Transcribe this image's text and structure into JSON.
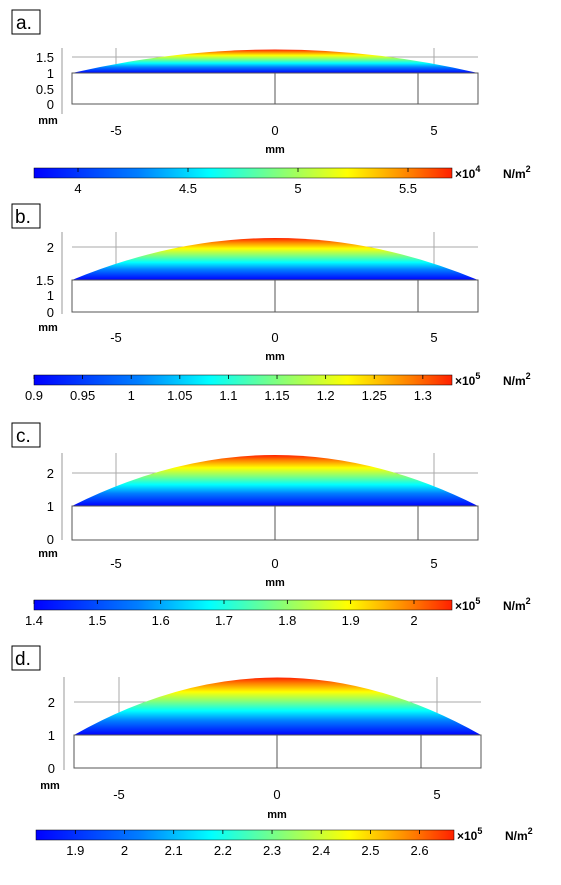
{
  "panels": [
    {
      "label": "a.",
      "y_ticks": [
        "0",
        "0.5",
        "1",
        "1.5"
      ],
      "y_unit": "mm",
      "x_ticks": [
        "-5",
        "0",
        "5"
      ],
      "x_unit": "mm",
      "colorbar_ticks": [
        "4",
        "4.5",
        "5",
        "5.5"
      ],
      "colorbar_min": 3.8,
      "colorbar_max": 5.7,
      "colorbar_multiplier": "×10",
      "colorbar_exponent": "4",
      "colorbar_unit": "N/m",
      "colorbar_unit_exponent": "2"
    },
    {
      "label": "b.",
      "y_ticks": [
        "0",
        "1",
        "1.5",
        "2"
      ],
      "y_unit": "mm",
      "x_ticks": [
        "-5",
        "0",
        "5"
      ],
      "x_unit": "mm",
      "colorbar_ticks": [
        "0.9",
        "0.95",
        "1",
        "1.05",
        "1.1",
        "1.15",
        "1.2",
        "1.25",
        "1.3"
      ],
      "colorbar_min": 0.9,
      "colorbar_max": 1.33,
      "colorbar_multiplier": "×10",
      "colorbar_exponent": "5",
      "colorbar_unit": "N/m",
      "colorbar_unit_exponent": "2"
    },
    {
      "label": "c.",
      "y_ticks": [
        "0",
        "1",
        "2"
      ],
      "y_unit": "mm",
      "x_ticks": [
        "-5",
        "0",
        "5"
      ],
      "x_unit": "mm",
      "colorbar_ticks": [
        "1.4",
        "1.5",
        "1.6",
        "1.7",
        "1.8",
        "1.9",
        "2"
      ],
      "colorbar_min": 1.4,
      "colorbar_max": 2.06,
      "colorbar_multiplier": "×10",
      "colorbar_exponent": "5",
      "colorbar_unit": "N/m",
      "colorbar_unit_exponent": "2"
    },
    {
      "label": "d.",
      "y_ticks": [
        "0",
        "1",
        "2"
      ],
      "y_unit": "mm",
      "x_ticks": [
        "-5",
        "0",
        "5"
      ],
      "x_unit": "mm",
      "colorbar_ticks": [
        "1.9",
        "2",
        "2.1",
        "2.2",
        "2.3",
        "2.4",
        "2.5",
        "2.6"
      ],
      "colorbar_min": 1.82,
      "colorbar_max": 2.67,
      "colorbar_multiplier": "×10",
      "colorbar_exponent": "5",
      "colorbar_unit": "N/m",
      "colorbar_unit_exponent": "2"
    }
  ],
  "colors": {
    "jet": [
      "#00007f",
      "#0000ff",
      "#007fff",
      "#00ffff",
      "#7fff7f",
      "#ffff00",
      "#ff7f00",
      "#ff0000",
      "#7f0000"
    ]
  }
}
